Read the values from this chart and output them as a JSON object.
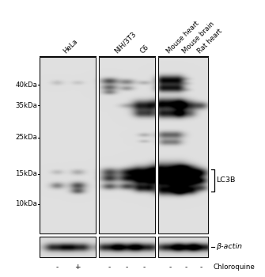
{
  "figure_width": 3.35,
  "figure_height": 3.5,
  "dpi": 100,
  "panel_bg": 0.88,
  "panel_border_color": "#222222",
  "mw_labels": [
    "40kDa",
    "35kDa",
    "25kDa",
    "15kDa",
    "10kDa"
  ],
  "label_fontsize": 6.2,
  "annotation_fontsize": 6.8,
  "small_fontsize": 6.5,
  "bracket_label": "LC3B",
  "beta_actin_label": "β-actin",
  "chloroquine_label": "Chloroquine",
  "chloroquine_signs": [
    "-",
    "+",
    "-",
    "-",
    "-",
    "-",
    "-"
  ]
}
